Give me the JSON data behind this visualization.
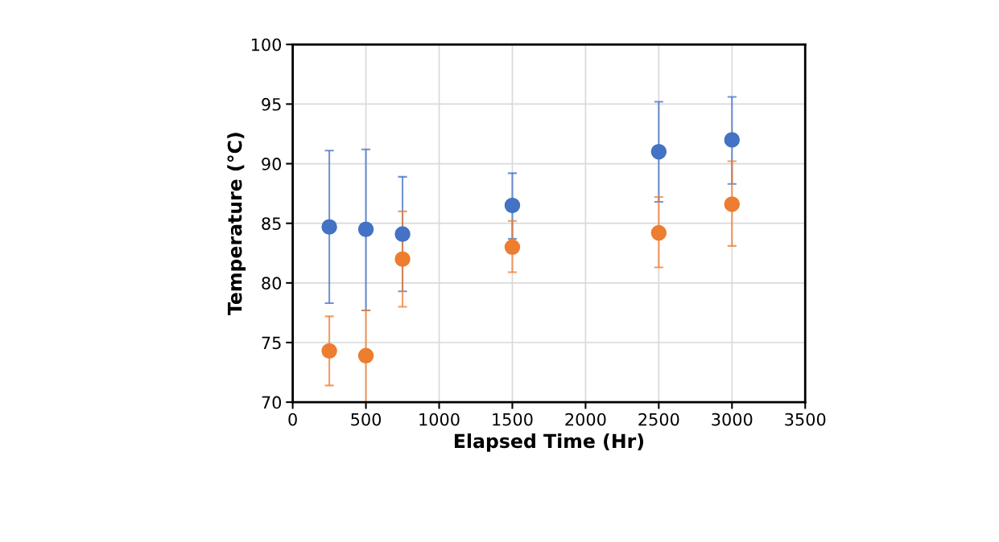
{
  "chart_data": {
    "type": "scatter",
    "xlabel": "Elapsed Time (Hr)",
    "ylabel": "Temperature (°C)",
    "x": [
      250,
      500,
      750,
      1500,
      2500,
      3000
    ],
    "series": [
      {
        "color": "#4472c4",
        "values": [
          84.7,
          84.5,
          84.1,
          86.5,
          91.0,
          92.0
        ],
        "errors": [
          [
            78.3,
            91.1
          ],
          [
            77.7,
            91.2
          ],
          [
            79.3,
            88.9
          ],
          [
            83.7,
            89.2
          ],
          [
            86.8,
            95.2
          ],
          [
            88.3,
            95.6
          ]
        ]
      },
      {
        "color": "#ed7d31",
        "values": [
          74.3,
          73.9,
          82.0,
          83.0,
          84.2,
          86.6
        ],
        "errors": [
          [
            71.4,
            77.2
          ],
          [
            70.0,
            77.7
          ],
          [
            78.0,
            86.0
          ],
          [
            80.9,
            85.2
          ],
          [
            81.3,
            87.2
          ],
          [
            83.1,
            90.2
          ]
        ]
      }
    ],
    "xlim": [
      0,
      3500
    ],
    "xticks": [
      0,
      500,
      1000,
      1500,
      2000,
      2500,
      3000,
      3500
    ],
    "ylim": [
      70,
      100
    ],
    "yticks": [
      70,
      75,
      80,
      85,
      90,
      95,
      100
    ],
    "grid": true,
    "marker": "circle"
  }
}
